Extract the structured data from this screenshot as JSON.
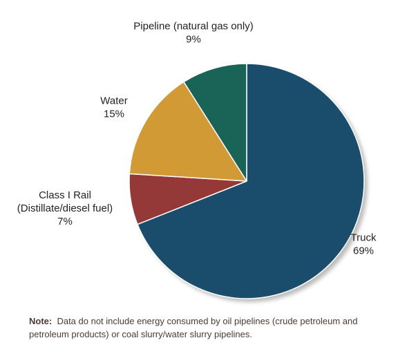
{
  "chart_data": {
    "type": "pie",
    "slices": [
      {
        "lines": [
          "Truck"
        ],
        "value": "69%",
        "percent": 69,
        "color": "#1a4d6b"
      },
      {
        "lines": [
          "Class I Rail",
          "(Distillate/diesel fuel)"
        ],
        "value": "7%",
        "percent": 7,
        "color": "#943838"
      },
      {
        "lines": [
          "Water"
        ],
        "value": "15%",
        "percent": 15,
        "color": "#d29a34"
      },
      {
        "lines": [
          "Pipeline (natural gas only)"
        ],
        "value": "9%",
        "percent": 9,
        "color": "#196457"
      }
    ],
    "start": "12 o'clock",
    "direction": "clockwise"
  },
  "note": {
    "prefix": "Note:",
    "text": "Data do not include energy consumed by oil pipelines (crude petroleum and petroleum products) or coal slurry/water slurry pipelines."
  }
}
